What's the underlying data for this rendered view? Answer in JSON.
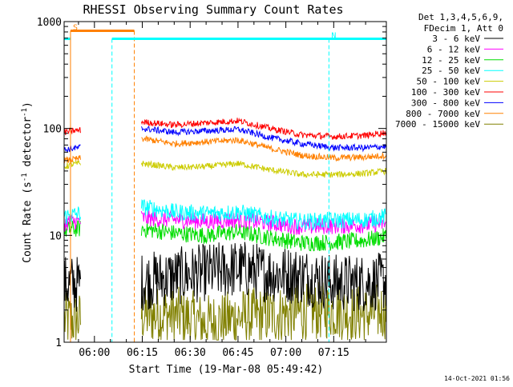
{
  "chart_data": {
    "type": "line",
    "title": "RHESSI Observing Summary Count Rates",
    "xlabel": "Start Time (19-Mar-08 05:49:42)",
    "ylabel_prefix": "Count Rate (s",
    "ylabel_sup1": "-1",
    "ylabel_mid": " detector",
    "ylabel_sup2": "-1",
    "ylabel_suffix": ")",
    "yscale": "log",
    "ylim": [
      1,
      1000
    ],
    "xlim_min": [
      -9.5,
      91.5
    ],
    "x_ticks": [
      {
        "value": 0,
        "label": "06:00"
      },
      {
        "value": 15,
        "label": "06:15"
      },
      {
        "value": 30,
        "label": "06:30"
      },
      {
        "value": 45,
        "label": "06:45"
      },
      {
        "value": 60,
        "label": "07:00"
      },
      {
        "value": 75,
        "label": "07:15"
      }
    ],
    "y_ticks": [
      {
        "value": 1,
        "label": "1"
      },
      {
        "value": 10,
        "label": "10"
      },
      {
        "value": 100,
        "label": "100"
      },
      {
        "value": 1000,
        "label": "1000"
      }
    ],
    "legend_header": [
      "Det 1,3,4,5,6,9,",
      "FDecim 1, Att 0"
    ],
    "timestamp": "14-Oct-2021 01:56",
    "series": [
      {
        "name": "3 - 6 keV",
        "color": "#000000",
        "data_gaps": [
          [
            -4.3,
            14.6
          ]
        ],
        "x": [
          -9.4,
          -7,
          -5,
          15,
          25,
          35,
          45,
          55,
          65,
          75,
          85,
          91.4
        ],
        "values": [
          3.5,
          3.5,
          3.5,
          3.7,
          4.1,
          4.5,
          4.9,
          4.4,
          4.2,
          3.6,
          3.6,
          3.7
        ]
      },
      {
        "name": "6 - 12 keV",
        "color": "#ff00ff",
        "data_gaps": [
          [
            -4.3,
            14.6
          ]
        ],
        "x": [
          -9.4,
          -7,
          -5,
          15,
          25,
          35,
          45,
          55,
          65,
          75,
          85,
          91.4
        ],
        "values": [
          13,
          13.5,
          13.5,
          14.5,
          14,
          13.5,
          14,
          13,
          12,
          12.3,
          12.5,
          13
        ]
      },
      {
        "name": "12 - 25 keV",
        "color": "#00dd00",
        "data_gaps": [
          [
            -4.3,
            14.6
          ]
        ],
        "x": [
          -9.4,
          -7,
          -5,
          15,
          25,
          35,
          45,
          55,
          65,
          75,
          85,
          91.4
        ],
        "values": [
          11,
          11.5,
          11.5,
          11.5,
          10.5,
          10,
          10.8,
          9.5,
          8.5,
          8.6,
          9,
          9.8
        ]
      },
      {
        "name": "25 - 50 keV",
        "color": "#00ffff",
        "data_gaps": [
          [
            -4.3,
            14.6
          ]
        ],
        "x": [
          -9.4,
          -7,
          -5,
          15,
          25,
          35,
          45,
          55,
          65,
          75,
          85,
          91.4
        ],
        "values": [
          15,
          15.5,
          16,
          18.5,
          16.5,
          16,
          16.5,
          14.5,
          13.5,
          13.8,
          14,
          15
        ]
      },
      {
        "name": "50 - 100 keV",
        "color": "#cccc00",
        "data_gaps": [
          [
            -4.3,
            14.6
          ]
        ],
        "x": [
          -9.4,
          -7,
          -5,
          15,
          25,
          35,
          45,
          55,
          65,
          75,
          85,
          91.4
        ],
        "values": [
          44,
          46,
          47,
          47,
          43,
          44,
          47,
          41,
          37,
          37,
          38,
          40
        ]
      },
      {
        "name": "100 - 300 keV",
        "color": "#ff0000",
        "data_gaps": [
          [
            -4.3,
            14.6
          ]
        ],
        "x": [
          -9.4,
          -7,
          -5,
          15,
          25,
          35,
          45,
          55,
          65,
          75,
          85,
          91.4
        ],
        "values": [
          92,
          95,
          96,
          115,
          108,
          113,
          118,
          100,
          87,
          84,
          86,
          92
        ]
      },
      {
        "name": "300 - 800 keV",
        "color": "#0000ff",
        "data_gaps": [
          [
            -4.3,
            14.6
          ]
        ],
        "x": [
          -9.4,
          -7,
          -5,
          15,
          25,
          35,
          45,
          55,
          65,
          75,
          85,
          91.4
        ],
        "values": [
          63,
          65,
          66,
          100,
          92,
          95,
          98,
          82,
          72,
          66,
          66,
          68
        ]
      },
      {
        "name": "800 - 7000 keV",
        "color": "#ff8000",
        "data_gaps": [
          [
            -4.3,
            14.6
          ]
        ],
        "x": [
          -9.4,
          -7,
          -5,
          15,
          25,
          35,
          45,
          55,
          65,
          75,
          85,
          91.4
        ],
        "values": [
          50,
          51,
          52,
          80,
          72,
          75,
          78,
          65,
          56,
          53,
          54,
          56
        ]
      },
      {
        "name": "7000 - 15000 keV",
        "color": "#808000",
        "data_gaps": [
          [
            -4.3,
            14.6
          ]
        ],
        "x": [
          -9.4,
          -7,
          -5,
          15,
          25,
          35,
          45,
          55,
          65,
          75,
          85,
          91.4
        ],
        "values": [
          1.6,
          1.6,
          1.6,
          1.8,
          1.8,
          1.5,
          1.7,
          1.8,
          1.9,
          2.0,
          1.8,
          2.0
        ]
      }
    ],
    "annotations": [
      {
        "label": "S",
        "color": "#ff8000",
        "start": -7.5,
        "end": 12.5,
        "level": 820,
        "labeled_edge": "start"
      },
      {
        "label": "N",
        "color": "#00ffff",
        "start": 5.5,
        "end": 73.5,
        "level": 690,
        "labeled_edge": "end"
      }
    ],
    "cyan_bars": [
      [
        -9.5,
        -7.5
      ],
      [
        73.5,
        91.5
      ]
    ]
  }
}
